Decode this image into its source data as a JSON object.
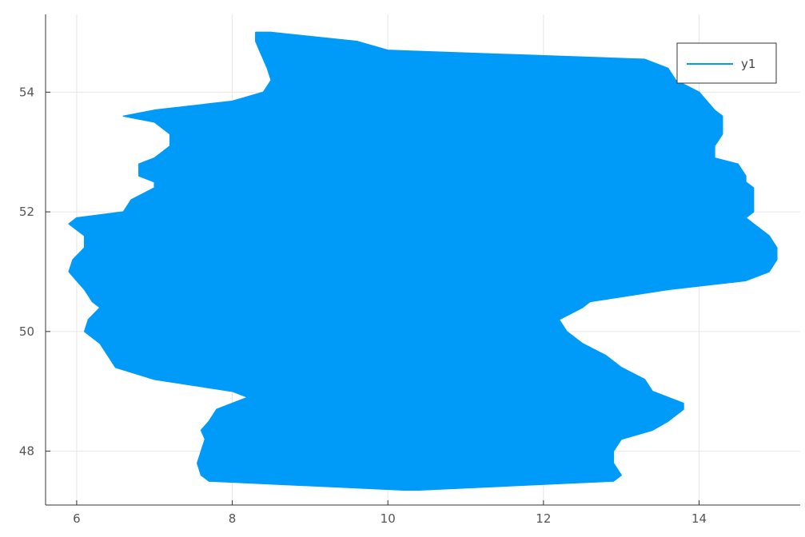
{
  "chart_data": {
    "type": "line",
    "title": "",
    "xlabel": "",
    "ylabel": "",
    "xlim": [
      5.6,
      15.3
    ],
    "ylim": [
      47.1,
      55.3
    ],
    "xticks": [
      6,
      8,
      10,
      12,
      14
    ],
    "yticks": [
      48,
      50,
      52,
      54
    ],
    "xtick_labels": [
      "6",
      "8",
      "10",
      "12",
      "14"
    ],
    "ytick_labels": [
      "48",
      "50",
      "52",
      "54"
    ],
    "grid": true,
    "legend": {
      "position": "top-right",
      "entries": [
        "y1"
      ]
    },
    "series": [
      {
        "name": "y1",
        "color": "#009AF9",
        "rendering": "dense back-and-forth path; envelope of min/max x per latitude band",
        "y": [
          55.0,
          54.85,
          54.7,
          54.55,
          54.4,
          54.2,
          54.0,
          53.85,
          53.7,
          53.6,
          53.5,
          53.3,
          53.1,
          52.9,
          52.8,
          52.6,
          52.5,
          52.4,
          52.2,
          52.0,
          51.9,
          51.8,
          51.6,
          51.4,
          51.2,
          51.0,
          50.85,
          50.7,
          50.5,
          50.4,
          50.2,
          50.0,
          49.8,
          49.6,
          49.4,
          49.2,
          49.0,
          48.9,
          48.8,
          48.7,
          48.5,
          48.35,
          48.2,
          48.0,
          47.8,
          47.6,
          47.5,
          47.35
        ],
        "x_min": [
          8.3,
          8.3,
          8.35,
          8.4,
          8.45,
          8.5,
          8.4,
          8.0,
          7.0,
          6.6,
          7.0,
          7.2,
          7.2,
          7.0,
          6.8,
          6.8,
          7.0,
          7.0,
          6.7,
          6.6,
          6.0,
          5.9,
          6.1,
          6.1,
          5.95,
          5.9,
          6.0,
          6.1,
          6.2,
          6.3,
          6.15,
          6.1,
          6.3,
          6.4,
          6.5,
          7.0,
          8.0,
          8.2,
          8.0,
          7.8,
          7.7,
          7.6,
          7.65,
          7.6,
          7.55,
          7.6,
          7.7,
          10.2
        ],
        "x_max": [
          8.5,
          9.6,
          10.0,
          13.3,
          13.6,
          13.7,
          14.0,
          14.1,
          14.2,
          14.3,
          14.3,
          14.3,
          14.2,
          14.2,
          14.5,
          14.6,
          14.6,
          14.7,
          14.7,
          14.7,
          14.6,
          14.7,
          14.9,
          15.0,
          15.0,
          14.9,
          14.6,
          13.6,
          12.6,
          12.5,
          12.2,
          12.3,
          12.5,
          12.8,
          13.0,
          13.3,
          13.4,
          13.6,
          13.8,
          13.8,
          13.6,
          13.4,
          13.0,
          12.9,
          12.9,
          13.0,
          12.9,
          10.4
        ]
      }
    ]
  }
}
